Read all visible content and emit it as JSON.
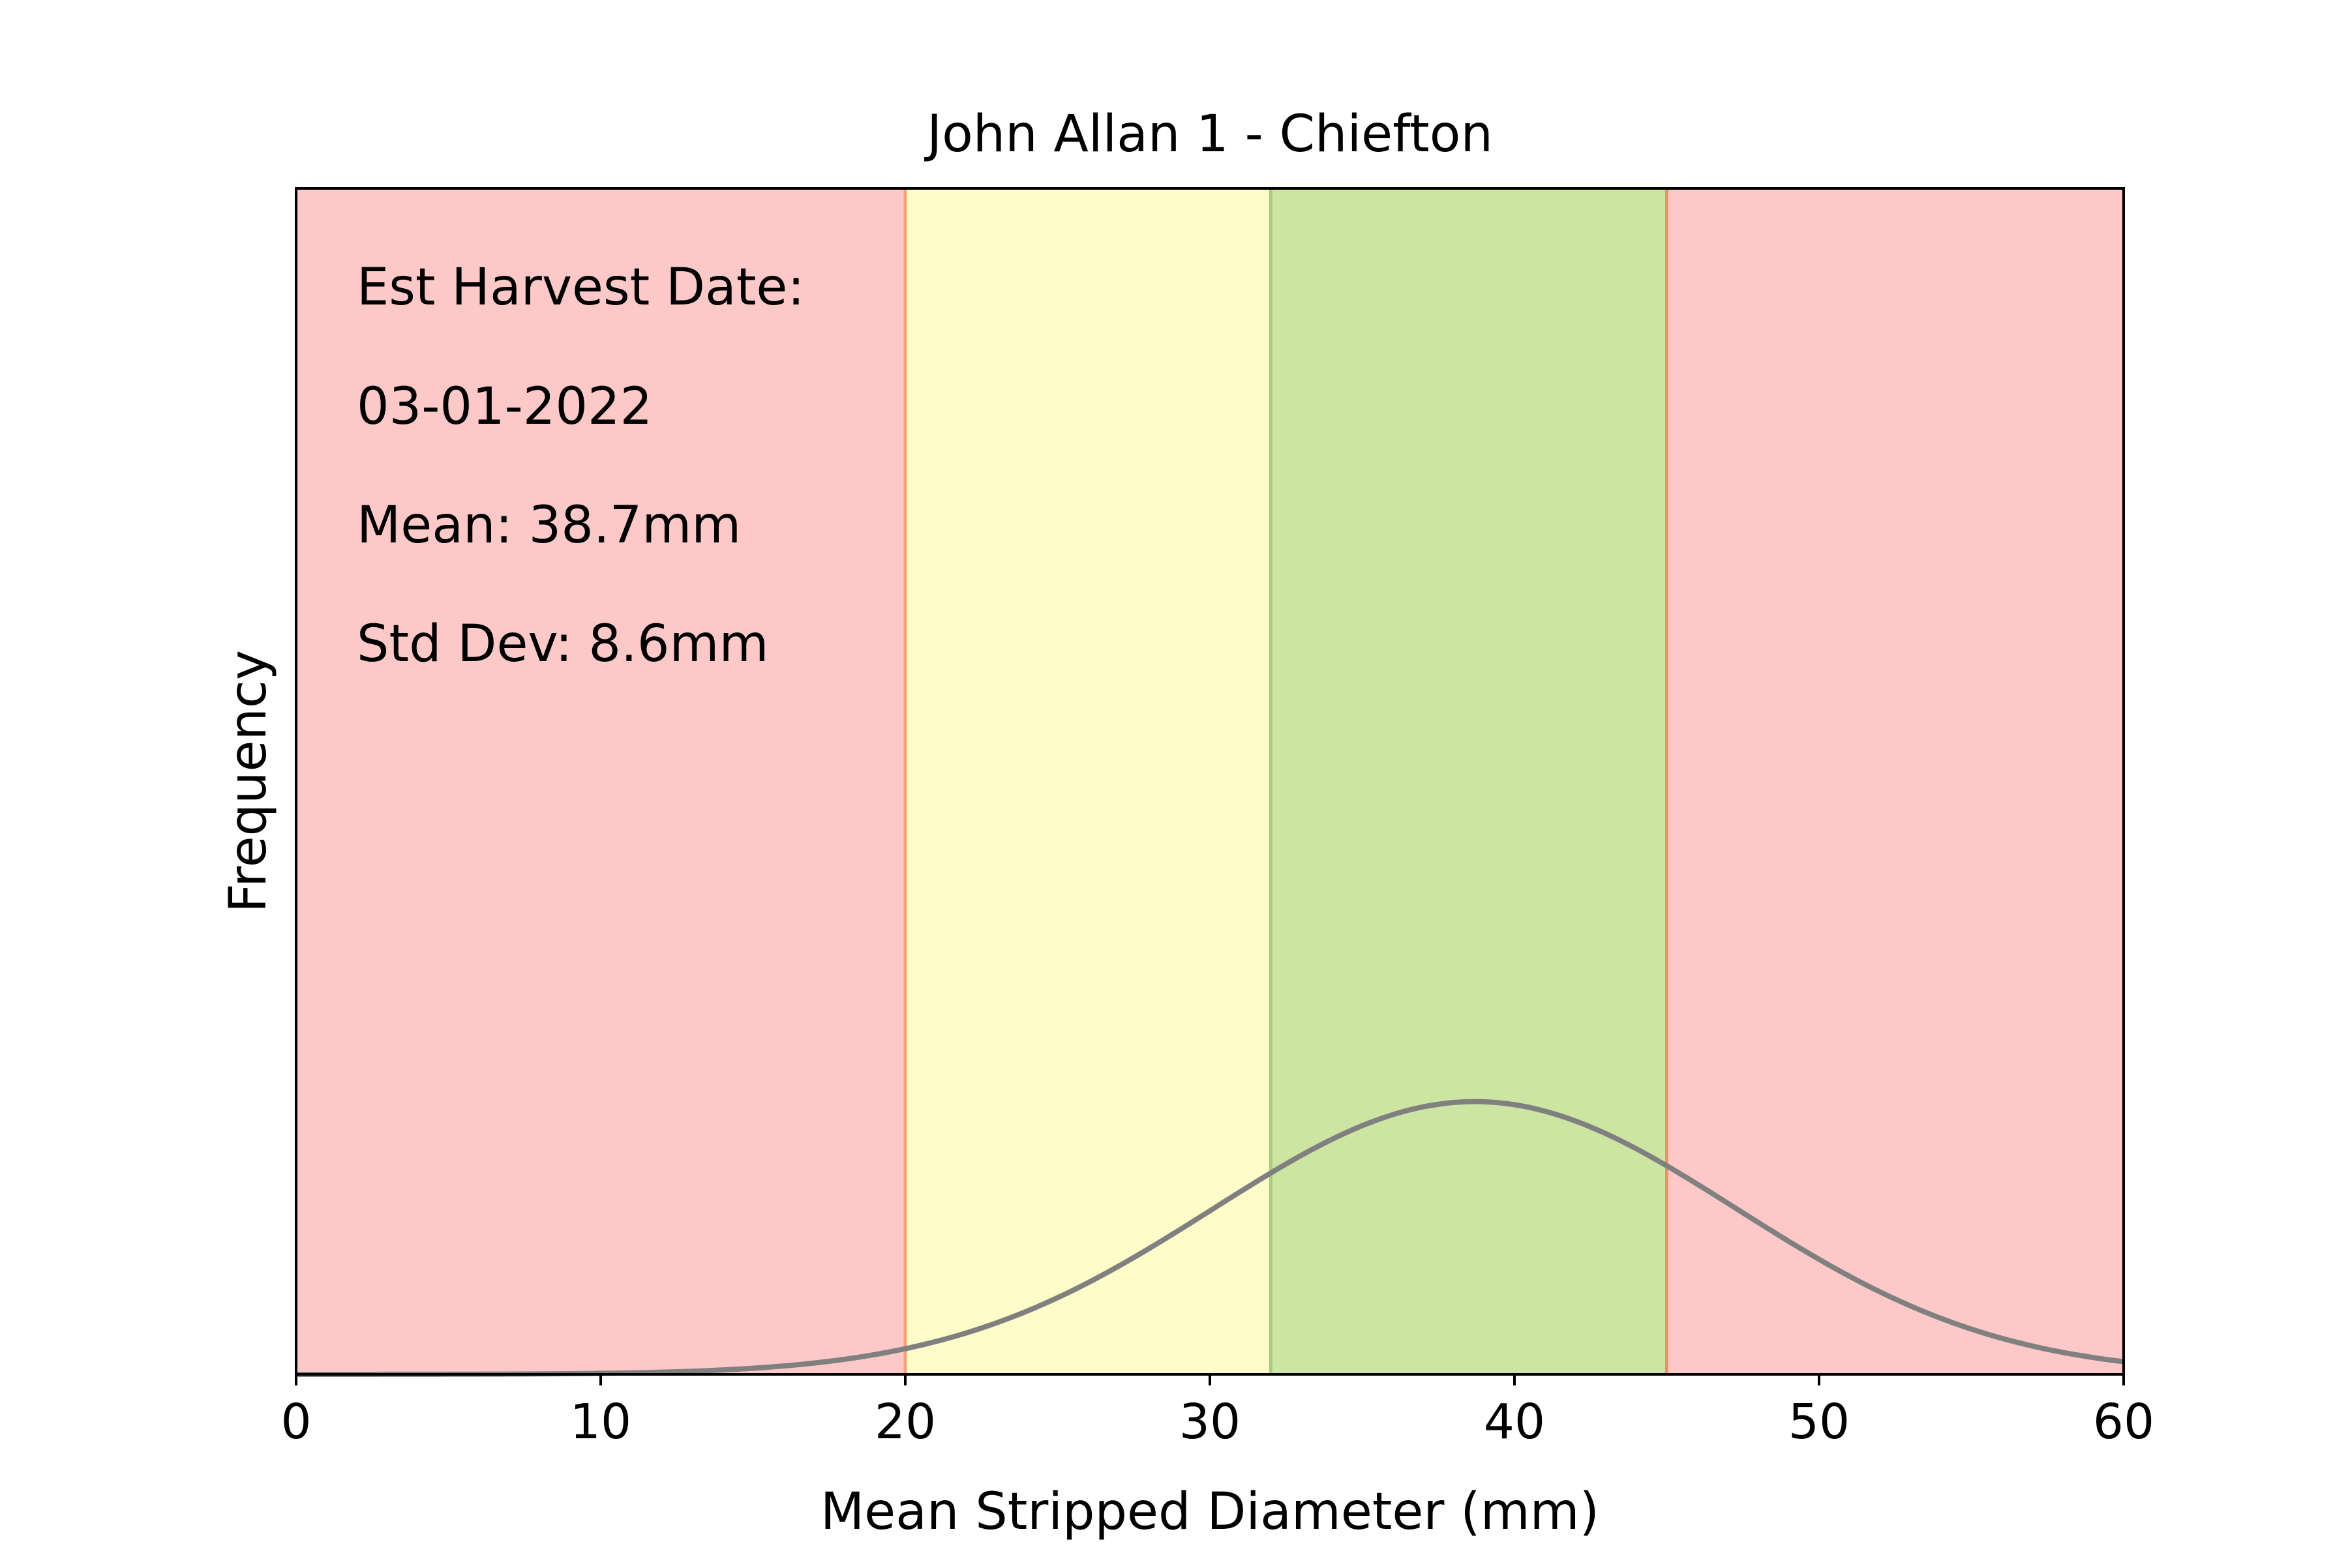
{
  "chart_data": {
    "type": "line",
    "title": "John Allan 1 - Chiefton",
    "xlabel": "Mean Stripped Diameter (mm)",
    "ylabel": "Frequency",
    "xlim": [
      0,
      60
    ],
    "xticks": [
      "0",
      "10",
      "20",
      "30",
      "40",
      "50",
      "60"
    ],
    "y_ticks_shown": false,
    "grid": false,
    "legend": false,
    "bands": [
      {
        "from": 0,
        "to": 20,
        "color": "#fcc9c8"
      },
      {
        "from": 20,
        "to": 32,
        "color": "#fefcc8"
      },
      {
        "from": 32,
        "to": 45,
        "color": "#cde5a3"
      },
      {
        "from": 45,
        "to": 60,
        "color": "#fcc9c8"
      }
    ],
    "band_edge_colors": {
      "20": "#f2a47a",
      "32": "#a9cd80",
      "45": "#e0966a"
    },
    "series": [
      {
        "distribution": "normal",
        "mean": 38.7,
        "std_dev": 8.6,
        "x_range": [
          0,
          60
        ],
        "color": "#808080"
      }
    ],
    "annotations": [
      "Est Harvest Date:",
      "03-01-2022",
      "Mean: 38.7mm",
      "Std Dev: 8.6mm"
    ]
  }
}
